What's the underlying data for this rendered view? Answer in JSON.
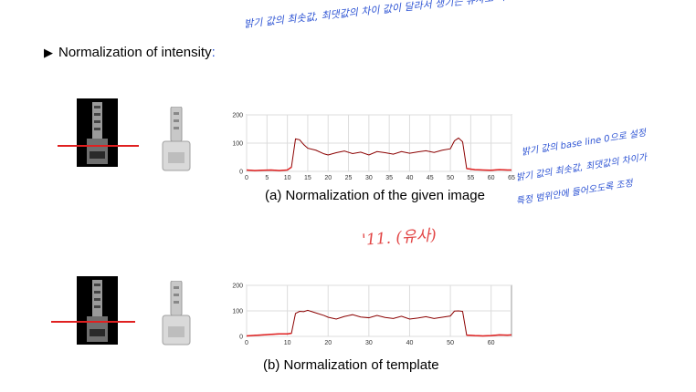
{
  "heading": {
    "bullet": "▶",
    "text": "Normalization of intensity",
    "colon": ":"
  },
  "annotations": {
    "main": "밝기 값의 최솟값, 최댓값의 차이 값이 달라서 생기는 유사도 차이 방지",
    "side_1": "밝기 값의 base line 0으로 설정",
    "side_2": "밝기 값의 최솟값, 최댓값의 차이가",
    "side_3": "특정 범위안에 들어오도록 조정",
    "middle": "'11. (유사)"
  },
  "captions": {
    "a": "(a) Normalization of the given image",
    "b": "(b) Normalization of template"
  },
  "colors": {
    "profile": "#e02020",
    "annotation": "#2f55d4",
    "series": "#8b0000"
  },
  "chart_data": [
    {
      "type": "line",
      "title": "",
      "xlabel": "",
      "ylabel": "",
      "xlim": [
        0,
        65
      ],
      "ylim": [
        0,
        200
      ],
      "x_ticks": [
        "0",
        "5",
        "10",
        "15",
        "20",
        "25",
        "30",
        "35",
        "40",
        "45",
        "50",
        "55",
        "60",
        "65"
      ],
      "y_ticks": [
        "0",
        "100",
        "200"
      ],
      "grid": true,
      "series": [
        {
          "x": [
            0,
            2,
            4,
            6,
            8,
            10,
            11,
            12,
            13,
            14,
            15,
            17,
            19,
            20,
            22,
            24,
            26,
            28,
            30,
            32,
            34,
            36,
            38,
            40,
            42,
            44,
            46,
            48,
            50,
            51,
            52,
            53,
            54,
            56,
            58,
            60,
            62,
            64,
            65
          ],
          "y": [
            5,
            3,
            4,
            5,
            3,
            5,
            15,
            115,
            112,
            95,
            82,
            75,
            62,
            58,
            66,
            72,
            63,
            68,
            58,
            70,
            66,
            61,
            70,
            64,
            69,
            73,
            67,
            75,
            80,
            108,
            118,
            105,
            10,
            6,
            5,
            4,
            6,
            5,
            5
          ]
        }
      ]
    },
    {
      "type": "line",
      "title": "",
      "xlabel": "",
      "ylabel": "",
      "xlim": [
        0,
        65
      ],
      "ylim": [
        0,
        200
      ],
      "x_ticks": [
        "0",
        "10",
        "20",
        "30",
        "40",
        "50",
        "60"
      ],
      "y_ticks": [
        "0",
        "100",
        "200"
      ],
      "grid": true,
      "series": [
        {
          "x": [
            0,
            2,
            4,
            6,
            8,
            10,
            11,
            12,
            13,
            14,
            15,
            17,
            19,
            20,
            22,
            24,
            26,
            28,
            30,
            32,
            34,
            36,
            38,
            40,
            42,
            44,
            46,
            48,
            50,
            51,
            52,
            53,
            54,
            56,
            58,
            60,
            62,
            64,
            65
          ],
          "y": [
            2,
            4,
            6,
            8,
            10,
            10,
            12,
            90,
            98,
            97,
            102,
            92,
            82,
            75,
            68,
            78,
            85,
            76,
            73,
            82,
            74,
            70,
            79,
            68,
            72,
            77,
            70,
            75,
            80,
            99,
            100,
            98,
            5,
            3,
            2,
            3,
            6,
            5,
            6
          ]
        }
      ]
    }
  ]
}
